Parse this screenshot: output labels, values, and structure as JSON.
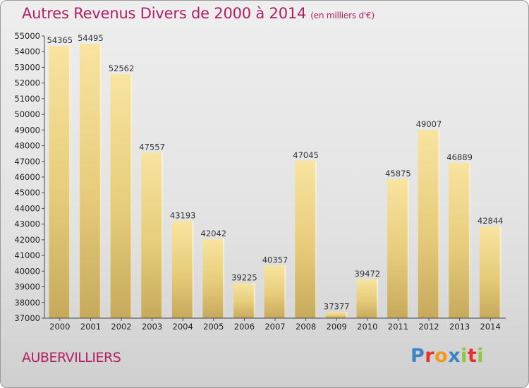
{
  "chart_data": {
    "type": "bar",
    "title": "Autres Revenus Divers de 2000 à 2014",
    "subtitle": "(en milliers d'€)",
    "categories": [
      "2000",
      "2001",
      "2002",
      "2003",
      "2004",
      "2005",
      "2006",
      "2007",
      "2008",
      "2009",
      "2010",
      "2011",
      "2012",
      "2013",
      "2014"
    ],
    "values": [
      54365,
      54495,
      52562,
      47557,
      43193,
      42042,
      39225,
      40357,
      47045,
      37377,
      39472,
      45875,
      49007,
      46889,
      42844
    ],
    "ylim": [
      37000,
      55000
    ],
    "ytick_step": 1000,
    "grid": false,
    "legend": "none",
    "bar_color": "#e6cc7a",
    "bar_color_light": "#f8e4a0",
    "bar_color_dark": "#c7a95c",
    "title_color": "#b01f63"
  },
  "location": "AUBERVILLIERS",
  "logo": {
    "text": "Proxiti",
    "letters": [
      {
        "char": "P",
        "color": "#3d84c6"
      },
      {
        "char": "r",
        "color": "#e8312a"
      },
      {
        "char": "o",
        "color": "#f39a1e"
      },
      {
        "char": "x",
        "color": "#3d84c6"
      },
      {
        "char": "i",
        "color": "#8dc63f"
      },
      {
        "char": "t",
        "color": "#e8312a"
      },
      {
        "char": "i",
        "color": "#8dc63f"
      }
    ]
  }
}
